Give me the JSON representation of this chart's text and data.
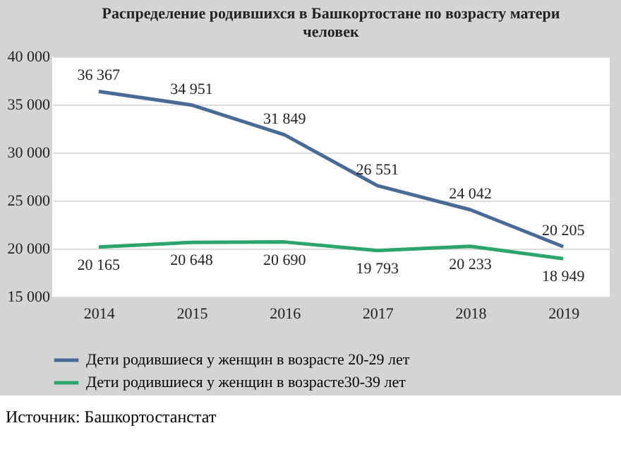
{
  "chart_data": {
    "type": "line",
    "title": [
      "Распределение родившихся в Башкортостане по возрасту матери",
      "человек"
    ],
    "categories": [
      "2014",
      "2015",
      "2016",
      "2017",
      "2018",
      "2019"
    ],
    "series": [
      {
        "name": "Дети родившиеся у женщин в возрасте 20-29 лет",
        "color": "#4a6a96",
        "values": [
          36367,
          34951,
          31849,
          26551,
          24042,
          20205
        ],
        "value_labels": [
          "36 367",
          "34 951",
          "31 849",
          "26 551",
          "24 042",
          "20 205"
        ]
      },
      {
        "name": "Дети родившиеся у женщин в возрасте30-39 лет",
        "color": "#2ba56b",
        "values": [
          20165,
          20648,
          20690,
          19793,
          20233,
          18949
        ],
        "value_labels": [
          "20 165",
          "20 648",
          "20 690",
          "19 793",
          "20 233",
          "18 949"
        ]
      }
    ],
    "ylim": [
      15000,
      40000
    ],
    "yticks": [
      {
        "value": 15000,
        "label": "15 000"
      },
      {
        "value": 20000,
        "label": "20 000"
      },
      {
        "value": 25000,
        "label": "25 000"
      },
      {
        "value": 30000,
        "label": "30 000"
      },
      {
        "value": 35000,
        "label": "35 000"
      },
      {
        "value": 40000,
        "label": "40 000"
      }
    ],
    "grid": "y",
    "legend": "bottom",
    "annotations": [
      "Источник: Башкортостанстат"
    ]
  }
}
